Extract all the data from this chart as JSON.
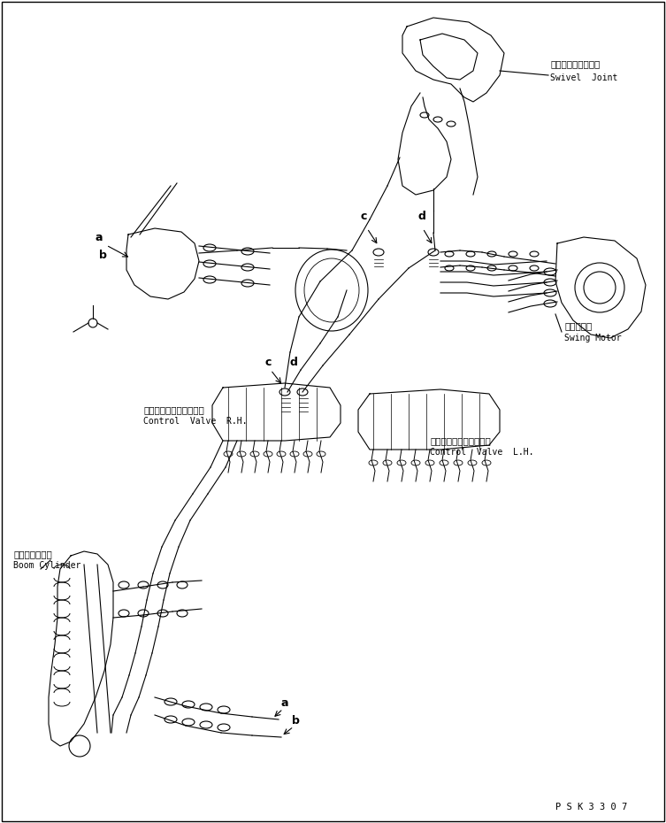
{
  "bg_color": "#ffffff",
  "line_color": "#000000",
  "fig_width": 7.53,
  "fig_height": 9.3,
  "dpi": 100,
  "labels": {
    "swivel_jp": "スイベルジョイント",
    "swivel_en": "Swivel  Joint",
    "swing_jp": "旋回モータ",
    "swing_en": "Swing Motor",
    "cv_rh_jp": "コントロールバルブ右側",
    "cv_rh_en": "Control  Valve  R.H.",
    "cv_lh_jp": "コントロールバルブ左側",
    "cv_lh_en": "Control  Valve  L.H.",
    "boom_jp": "ブームシリンダ",
    "boom_en": "Boom Cylinder",
    "part_code": "P S K 3 3 0 7"
  },
  "font_sizes": {
    "label_jp": 7.5,
    "label_en": 7.0,
    "part_code": 7.5,
    "callout": 9.0
  }
}
